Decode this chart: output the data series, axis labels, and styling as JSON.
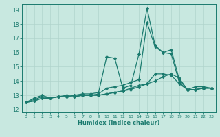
{
  "title": "",
  "xlabel": "Humidex (Indice chaleur)",
  "bg_color": "#c8e8e0",
  "grid_color": "#b0d4cc",
  "line_color": "#1a7a6e",
  "xlim": [
    -0.5,
    23.5
  ],
  "ylim": [
    11.8,
    19.4
  ],
  "yticks": [
    12,
    13,
    14,
    15,
    16,
    17,
    18,
    19
  ],
  "xticks": [
    0,
    1,
    2,
    3,
    4,
    5,
    6,
    7,
    8,
    9,
    10,
    11,
    12,
    13,
    14,
    15,
    16,
    17,
    18,
    19,
    20,
    21,
    22,
    23
  ],
  "series": [
    {
      "x": [
        0,
        1,
        2,
        3,
        4,
        5,
        6,
        7,
        8,
        9,
        10,
        11,
        12,
        13,
        14,
        15,
        16,
        17,
        18,
        19,
        20,
        21,
        22,
        23
      ],
      "y": [
        12.5,
        12.8,
        13.0,
        12.8,
        12.9,
        13.0,
        13.0,
        13.1,
        13.1,
        13.2,
        15.7,
        15.6,
        13.5,
        13.7,
        15.9,
        19.1,
        16.5,
        16.0,
        16.2,
        14.1,
        13.4,
        13.6,
        13.6,
        13.5
      ]
    },
    {
      "x": [
        0,
        1,
        2,
        3,
        4,
        5,
        6,
        7,
        8,
        9,
        10,
        11,
        12,
        13,
        14,
        15,
        16,
        17,
        18,
        19,
        20,
        21,
        22,
        23
      ],
      "y": [
        12.5,
        12.7,
        12.9,
        12.8,
        12.9,
        12.9,
        13.0,
        13.0,
        13.0,
        13.1,
        13.5,
        13.6,
        13.7,
        13.9,
        14.1,
        18.1,
        16.4,
        16.0,
        15.9,
        13.9,
        13.4,
        13.4,
        13.5,
        13.5
      ]
    },
    {
      "x": [
        0,
        1,
        2,
        3,
        4,
        5,
        6,
        7,
        8,
        9,
        10,
        11,
        12,
        13,
        14,
        15,
        16,
        17,
        18,
        19,
        20,
        21,
        22,
        23
      ],
      "y": [
        12.5,
        12.6,
        12.8,
        12.8,
        12.9,
        12.9,
        12.9,
        13.0,
        13.0,
        13.0,
        13.1,
        13.2,
        13.3,
        13.5,
        13.7,
        13.8,
        14.5,
        14.5,
        14.4,
        13.8,
        13.4,
        13.4,
        13.5,
        13.5
      ]
    },
    {
      "x": [
        0,
        1,
        2,
        3,
        4,
        5,
        6,
        7,
        8,
        9,
        10,
        11,
        12,
        13,
        14,
        15,
        16,
        17,
        18,
        19,
        20,
        21,
        22,
        23
      ],
      "y": [
        12.5,
        12.6,
        12.8,
        12.8,
        12.9,
        12.9,
        12.9,
        13.0,
        13.0,
        13.0,
        13.1,
        13.2,
        13.3,
        13.4,
        13.6,
        13.8,
        14.0,
        14.3,
        14.5,
        14.2,
        13.4,
        13.4,
        13.5,
        13.5
      ]
    }
  ]
}
